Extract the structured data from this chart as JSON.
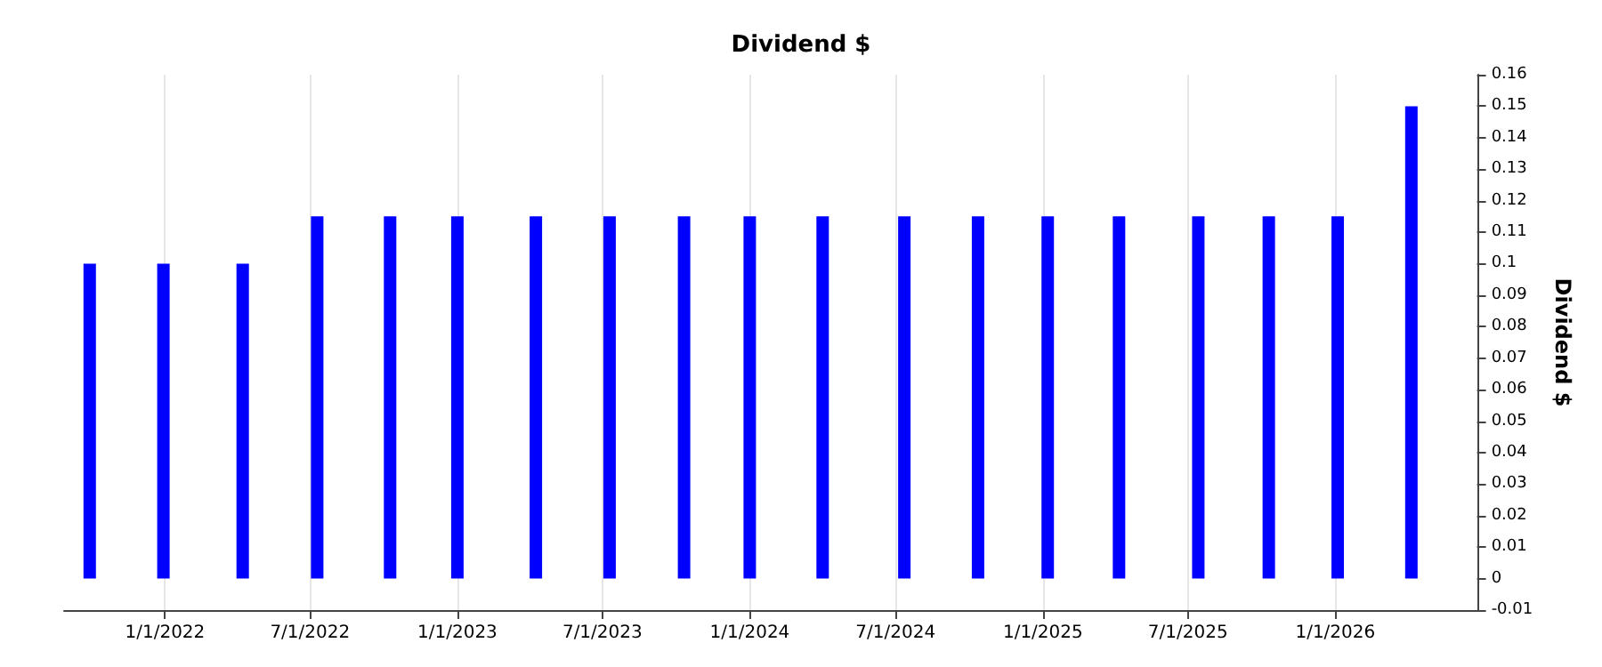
{
  "chart_data": {
    "type": "bar",
    "title": "Dividend $",
    "ylabel": "Dividend $",
    "x": [
      "2021-09-29",
      "2021-12-30",
      "2022-04-08",
      "2022-07-10",
      "2022-10-09",
      "2023-01-01",
      "2023-04-09",
      "2023-07-10",
      "2023-10-11",
      "2024-01-01",
      "2024-04-01",
      "2024-07-12",
      "2024-10-12",
      "2025-01-07",
      "2025-04-06",
      "2025-07-14",
      "2025-10-10",
      "2026-01-04",
      "2026-04-06"
    ],
    "values": [
      0.1,
      0.1,
      0.1,
      0.115,
      0.115,
      0.115,
      0.115,
      0.115,
      0.115,
      0.115,
      0.115,
      0.115,
      0.115,
      0.115,
      0.115,
      0.115,
      0.115,
      0.115,
      0.15
    ],
    "color": "#0000ff",
    "xlim": [
      "2021-08-28",
      "2026-06-27"
    ],
    "xticks": [
      {
        "value": "2022-01-01",
        "label": "1/1/2022"
      },
      {
        "value": "2022-07-01",
        "label": "7/1/2022"
      },
      {
        "value": "2023-01-01",
        "label": "1/1/2023"
      },
      {
        "value": "2023-07-01",
        "label": "7/1/2023"
      },
      {
        "value": "2024-01-01",
        "label": "1/1/2024"
      },
      {
        "value": "2024-07-01",
        "label": "7/1/2024"
      },
      {
        "value": "2025-01-01",
        "label": "1/1/2025"
      },
      {
        "value": "2025-07-01",
        "label": "7/1/2025"
      },
      {
        "value": "2026-01-01",
        "label": "1/1/2026"
      }
    ],
    "ylim": [
      -0.01,
      0.16
    ],
    "yticks": [
      -0.01,
      0,
      0.01,
      0.02,
      0.03,
      0.04,
      0.05,
      0.06,
      0.07,
      0.08,
      0.09,
      0.1,
      0.11,
      0.12,
      0.13,
      0.14,
      0.15,
      0.16
    ],
    "grid": "x"
  }
}
